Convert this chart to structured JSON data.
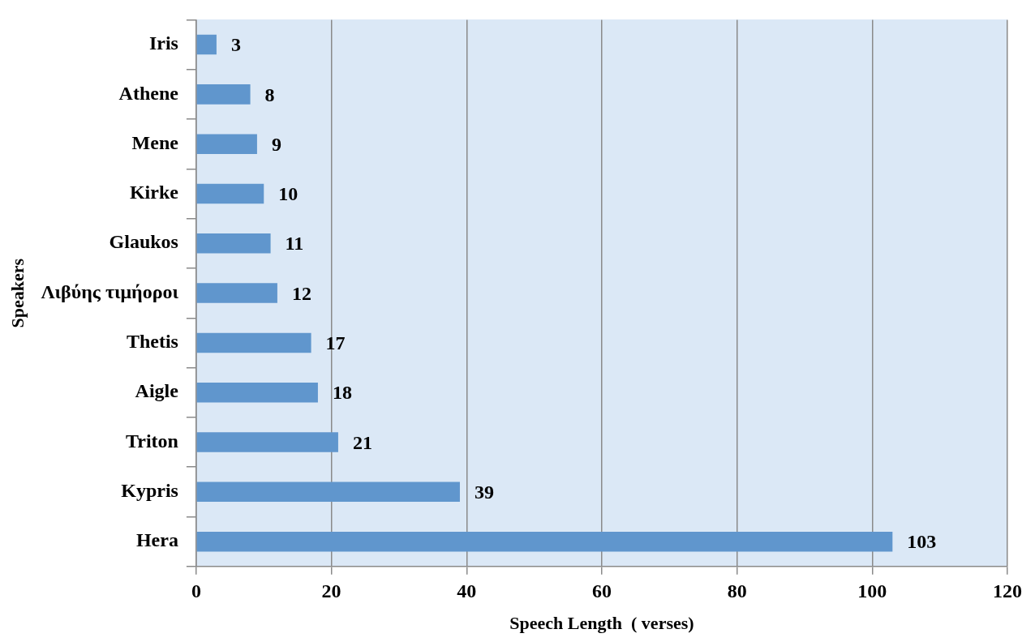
{
  "chart_data": {
    "type": "bar",
    "orientation": "horizontal",
    "xlabel": "Speech Length  ( verses)",
    "ylabel": "Speakers",
    "categories": [
      "Iris",
      "Athene",
      "Mene",
      "Kirke",
      "Glaukos",
      "Λιβύης τιμήοροι",
      "Thetis",
      "Aigle",
      "Triton",
      "Kypris",
      "Hera"
    ],
    "values": [
      3,
      8,
      9,
      10,
      11,
      12,
      17,
      18,
      21,
      39,
      103
    ],
    "color": "#6096cd",
    "xlim": [
      0,
      120
    ],
    "xticks": [
      0,
      20,
      40,
      60,
      80,
      100,
      120
    ],
    "grid": "x",
    "data_labels": true,
    "legend": false
  }
}
